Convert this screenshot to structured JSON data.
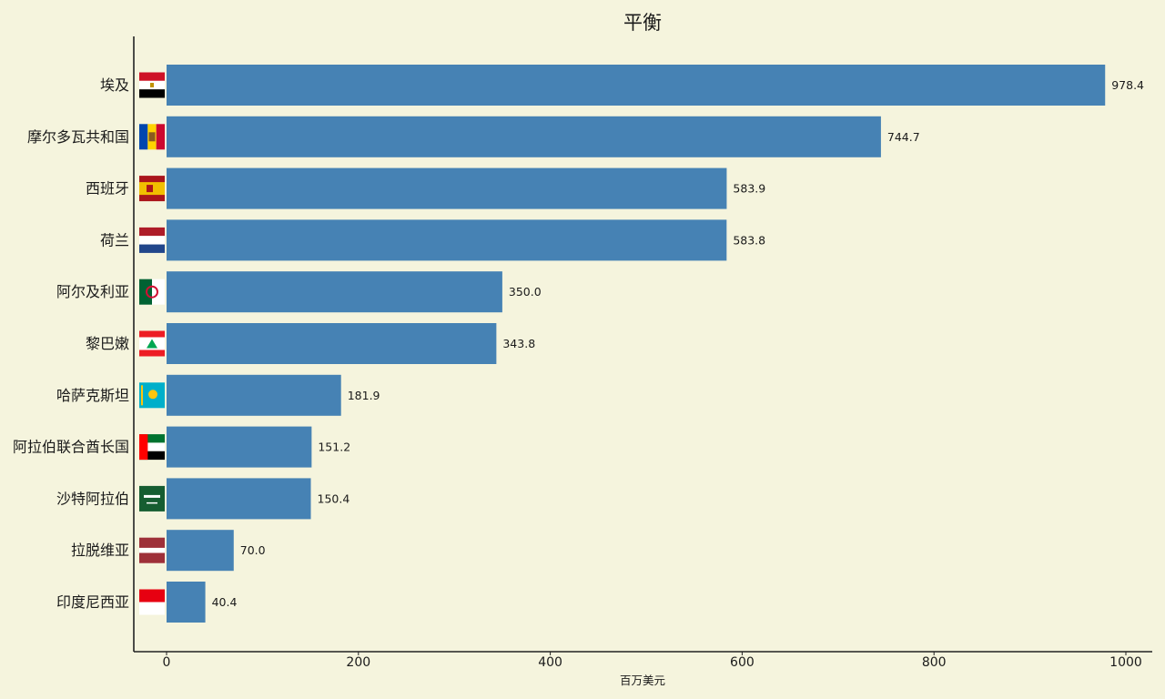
{
  "chart_data": {
    "type": "bar",
    "orientation": "horizontal",
    "title": "平衡",
    "xlabel": "百万美元",
    "ylabel": "",
    "xlim": [
      0,
      1000
    ],
    "x_ticks": [
      "0",
      "200",
      "400",
      "600",
      "800",
      "1000"
    ],
    "grid": false,
    "bar_color": "#4682b4",
    "background": "#f5f4dd",
    "categories": [
      "埃及",
      "摩尔多瓦共和国",
      "西班牙",
      "荷兰",
      "阿尔及利亚",
      "黎巴嫩",
      "哈萨克斯坦",
      "阿拉伯联合酋长国",
      "沙特阿拉伯",
      "拉脱维亚",
      "印度尼西亚"
    ],
    "values": [
      978.4,
      744.7,
      583.9,
      583.8,
      350.0,
      343.8,
      181.9,
      151.2,
      150.4,
      70.0,
      40.4
    ],
    "value_labels": [
      "978.4",
      "744.7",
      "583.9",
      "583.8",
      "350.0",
      "343.8",
      "181.9",
      "151.2",
      "150.4",
      "70.0",
      "40.4"
    ],
    "flags": [
      "egypt-flag",
      "moldova-flag",
      "spain-flag",
      "netherlands-flag",
      "algeria-flag",
      "lebanon-flag",
      "kazakhstan-flag",
      "uae-flag",
      "saudi-arabia-flag",
      "latvia-flag",
      "indonesia-flag"
    ]
  }
}
